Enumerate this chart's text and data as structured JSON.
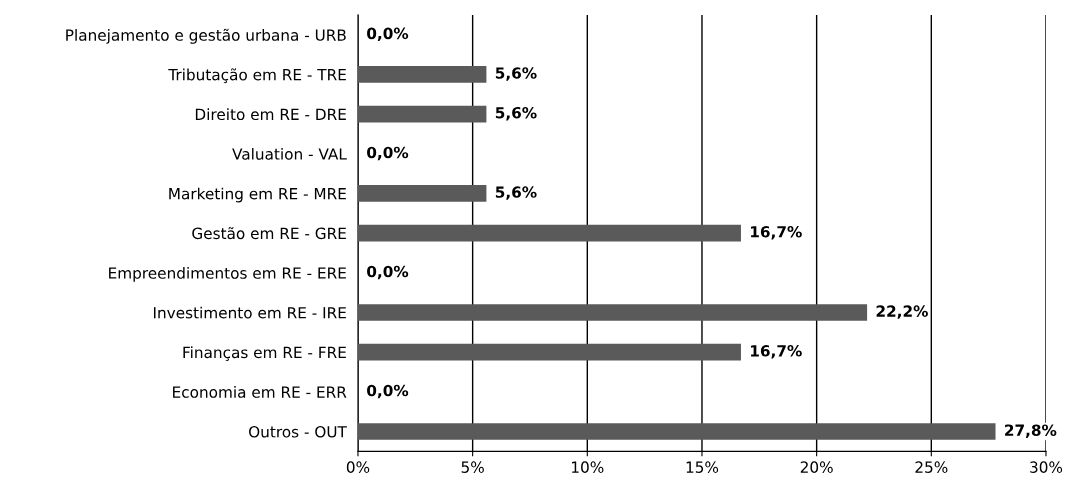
{
  "chart_data": {
    "type": "bar",
    "orientation": "horizontal",
    "categories": [
      "Planejamento e gestão urbana - URB",
      "Tributação em RE - TRE",
      "Direito em RE - DRE",
      "Valuation - VAL",
      "Marketing em RE - MRE",
      "Gestão em RE - GRE",
      "Empreendimentos em RE - ERE",
      "Investimento em RE - IRE",
      "Finanças em RE - FRE",
      "Economia em RE - ERR",
      "Outros - OUT"
    ],
    "values": [
      0,
      5.6,
      5.6,
      0,
      5.6,
      16.7,
      0,
      22.2,
      16.7,
      0,
      27.8
    ],
    "value_labels": [
      "0,0%",
      "5,6%",
      "5,6%",
      "0,0%",
      "5,6%",
      "16,7%",
      "0,0%",
      "22,2%",
      "16,7%",
      "0,0%",
      "27,8%"
    ],
    "color": "#5a5a5a",
    "xlim": [
      0,
      30
    ],
    "xticks": [
      {
        "value": 0,
        "label": "0%"
      },
      {
        "value": 5,
        "label": "5%"
      },
      {
        "value": 10,
        "label": "10%"
      },
      {
        "value": 15,
        "label": "15%"
      },
      {
        "value": 20,
        "label": "20%"
      },
      {
        "value": 25,
        "label": "25%"
      },
      {
        "value": 30,
        "label": "30%"
      }
    ],
    "grid": "x"
  }
}
